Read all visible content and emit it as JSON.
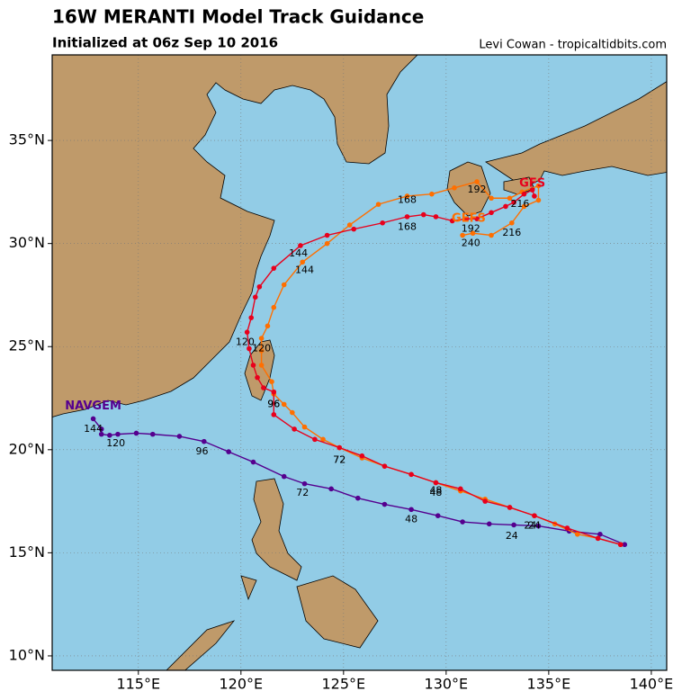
{
  "chart_data": {
    "type": "map",
    "title": "16W MERANTI Model Track Guidance",
    "subtitle": "Initialized at 06z Sep 10 2016",
    "credit": "Levi Cowan - tropicaltidbits.com",
    "xlim": [
      110.8,
      140.75
    ],
    "ylim": [
      9.3,
      39.15
    ],
    "xticks": [
      {
        "value": 115,
        "label": "115°E"
      },
      {
        "value": 120,
        "label": "120°E"
      },
      {
        "value": 125,
        "label": "125°E"
      },
      {
        "value": 130,
        "label": "130°E"
      },
      {
        "value": 135,
        "label": "135°E"
      },
      {
        "value": 140,
        "label": "140°E"
      }
    ],
    "yticks": [
      {
        "value": 10,
        "label": "10°N"
      },
      {
        "value": 15,
        "label": "15°N"
      },
      {
        "value": 20,
        "label": "20°N"
      },
      {
        "value": 25,
        "label": "25°N"
      },
      {
        "value": 30,
        "label": "30°N"
      },
      {
        "value": 35,
        "label": "35°N"
      }
    ],
    "grid": true,
    "series": [
      {
        "name": "NAVGEM",
        "color": "#55008f",
        "name_lon": 112.8,
        "name_lat": 22.1,
        "lon": [
          138.7,
          137.5,
          136.0,
          134.5,
          133.3,
          132.1,
          130.8,
          129.6,
          128.3,
          127.0,
          125.7,
          124.4,
          123.1,
          122.1,
          120.6,
          119.4,
          118.2,
          117.0,
          115.7,
          114.9,
          114.0,
          113.6,
          113.2,
          113.2,
          112.8
        ],
        "lat": [
          15.4,
          15.9,
          16.05,
          16.3,
          16.35,
          16.4,
          16.5,
          16.8,
          17.1,
          17.35,
          17.65,
          18.1,
          18.35,
          18.7,
          19.4,
          19.9,
          20.4,
          20.65,
          20.75,
          20.8,
          20.75,
          20.7,
          20.75,
          21.0,
          21.5
        ],
        "hour_labels": [
          "24",
          "48",
          "72",
          "96",
          "120",
          "144"
        ],
        "hour_label_lon": [
          133.2,
          128.3,
          123.0,
          118.1,
          113.9,
          112.8
        ],
        "hour_label_lat": [
          15.8,
          16.6,
          17.9,
          19.9,
          20.3,
          21.0
        ]
      },
      {
        "name": "GEFS",
        "color": "#ff6f00",
        "name_lon": 131.1,
        "name_lat": 31.2,
        "lon": [
          138.5,
          137.4,
          136.4,
          135.3,
          134.3,
          133.1,
          131.9,
          130.7,
          129.5,
          128.3,
          127.0,
          125.9,
          124.8,
          124.0,
          123.1,
          122.5,
          122.1,
          121.6,
          121.5,
          121.0,
          121.0,
          121.0,
          121.3,
          121.6,
          122.1,
          123.0,
          124.2,
          125.3,
          126.7,
          128.1,
          129.3,
          130.4,
          131.5,
          132.2,
          133.1,
          133.7,
          134.5,
          134.5,
          133.8,
          133.2,
          132.2,
          131.3,
          130.8
        ],
        "lat": [
          15.4,
          15.7,
          15.9,
          16.4,
          16.8,
          17.2,
          17.6,
          18.0,
          18.4,
          18.8,
          19.2,
          19.6,
          20.1,
          20.5,
          21.1,
          21.8,
          22.2,
          22.7,
          23.3,
          24.1,
          24.8,
          25.4,
          26.0,
          26.9,
          28.0,
          29.1,
          30.0,
          30.9,
          31.9,
          32.3,
          32.4,
          32.7,
          33.0,
          32.2,
          32.2,
          32.5,
          32.8,
          32.1,
          31.8,
          31.0,
          30.4,
          30.5,
          30.4
        ],
        "hour_labels": [
          "24",
          "48",
          "72",
          "96",
          "120",
          "144",
          "168",
          "192",
          "216",
          "240"
        ],
        "hour_label_lon": [
          134.1,
          129.5,
          124.8,
          121.6,
          121.0,
          123.1,
          128.1,
          131.5,
          133.2,
          131.2
        ],
        "hour_label_lat": [
          16.3,
          17.9,
          19.5,
          22.2,
          24.9,
          28.7,
          32.1,
          32.6,
          30.5,
          30.0
        ]
      },
      {
        "name": "GFS",
        "color": "#e8001c",
        "name_lon": 134.2,
        "name_lat": 32.9,
        "lon": [
          138.5,
          137.4,
          135.9,
          134.3,
          133.1,
          131.9,
          130.7,
          129.5,
          128.3,
          127.0,
          125.9,
          124.8,
          123.6,
          122.6,
          121.6,
          121.6,
          121.1,
          120.8,
          120.6,
          120.4,
          120.3,
          120.5,
          120.7,
          120.9,
          121.6,
          122.9,
          124.2,
          125.5,
          126.9,
          128.1,
          128.9,
          129.5,
          130.3,
          131.0,
          131.5,
          132.2,
          132.9,
          133.3,
          133.8,
          134.2,
          134.3
        ],
        "lat": [
          15.4,
          15.7,
          16.2,
          16.8,
          17.2,
          17.5,
          18.1,
          18.4,
          18.8,
          19.2,
          19.7,
          20.1,
          20.5,
          21.0,
          21.7,
          22.8,
          23.0,
          23.5,
          24.1,
          24.9,
          25.7,
          26.4,
          27.4,
          27.9,
          28.8,
          29.9,
          30.4,
          30.7,
          31.0,
          31.3,
          31.4,
          31.3,
          31.1,
          31.2,
          31.2,
          31.5,
          31.8,
          32.0,
          32.4,
          32.6,
          32.3
        ],
        "hour_labels": [
          "24",
          "48",
          "72",
          "96",
          "120",
          "144",
          "168",
          "192",
          "216"
        ],
        "hour_label_lon": [
          134.3,
          129.5,
          124.8,
          121.6,
          120.2,
          122.8,
          128.1,
          131.2,
          133.6
        ],
        "hour_label_lat": [
          16.3,
          18.0,
          19.5,
          22.2,
          25.2,
          29.5,
          30.8,
          30.7,
          31.9
        ]
      }
    ]
  }
}
